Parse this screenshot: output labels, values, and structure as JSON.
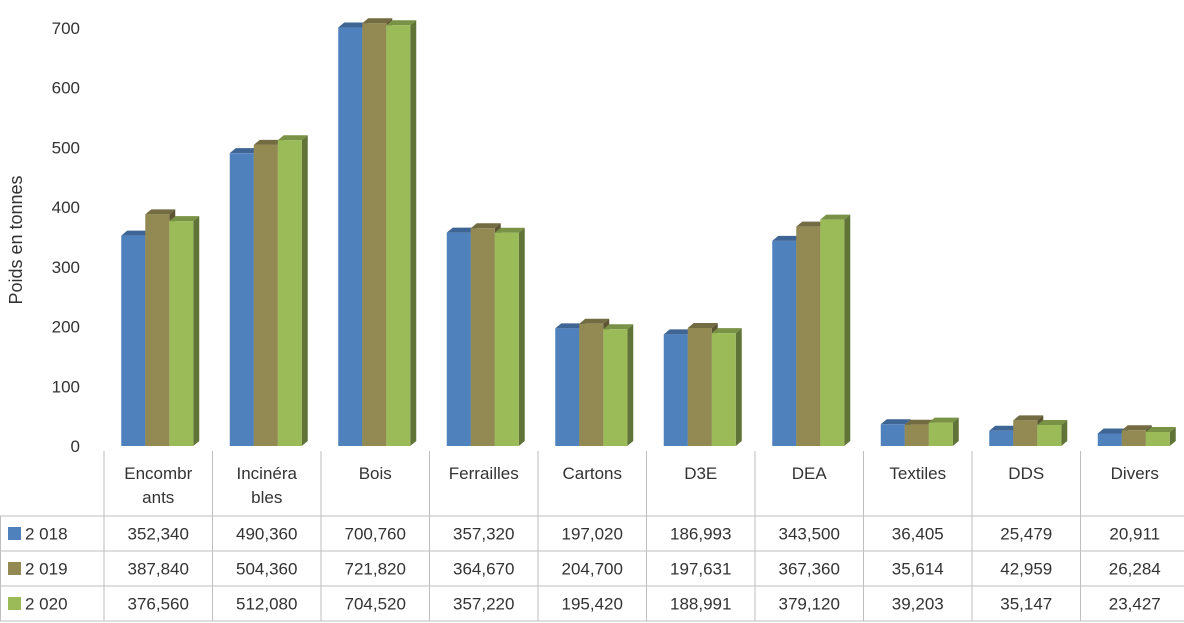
{
  "chart_data": {
    "type": "bar",
    "ylabel": "Poids en tonnes",
    "ylim": [
      0,
      700
    ],
    "yticks": [
      0,
      100,
      200,
      300,
      400,
      500,
      600,
      700
    ],
    "grid": false,
    "legend": "table-below",
    "categories": [
      [
        "Encombr",
        "ants"
      ],
      [
        "Incinéra",
        "bles"
      ],
      [
        "Bois"
      ],
      [
        "Ferrailles"
      ],
      [
        "Cartons"
      ],
      [
        "D3E"
      ],
      [
        "DEA"
      ],
      [
        "Textiles"
      ],
      [
        "DDS"
      ],
      [
        "Divers"
      ]
    ],
    "series": [
      {
        "name": "2 018",
        "color": "#4f81bd",
        "values": [
          352.34,
          490.36,
          700.76,
          357.32,
          197.02,
          186.993,
          343.5,
          36.405,
          25.479,
          20.911
        ],
        "labels": [
          "352,340",
          "490,360",
          "700,760",
          "357,320",
          "197,020",
          "186,993",
          "343,500",
          "36,405",
          "25,479",
          "20,911"
        ]
      },
      {
        "name": "2 019",
        "color": "#938953",
        "values": [
          387.84,
          504.36,
          721.82,
          364.67,
          204.7,
          197.631,
          367.36,
          35.614,
          42.959,
          26.284
        ],
        "labels": [
          "387,840",
          "504,360",
          "721,820",
          "364,670",
          "204,700",
          "197,631",
          "367,360",
          "35,614",
          "42,959",
          "26,284"
        ]
      },
      {
        "name": "2 020",
        "color": "#9bbb59",
        "values": [
          376.56,
          512.08,
          704.52,
          357.22,
          195.42,
          188.991,
          379.12,
          39.203,
          35.147,
          23.427
        ],
        "labels": [
          "376,560",
          "512,080",
          "704,520",
          "357,220",
          "195,420",
          "188,991",
          "379,120",
          "39,203",
          "35,147",
          "23,427"
        ]
      }
    ]
  }
}
